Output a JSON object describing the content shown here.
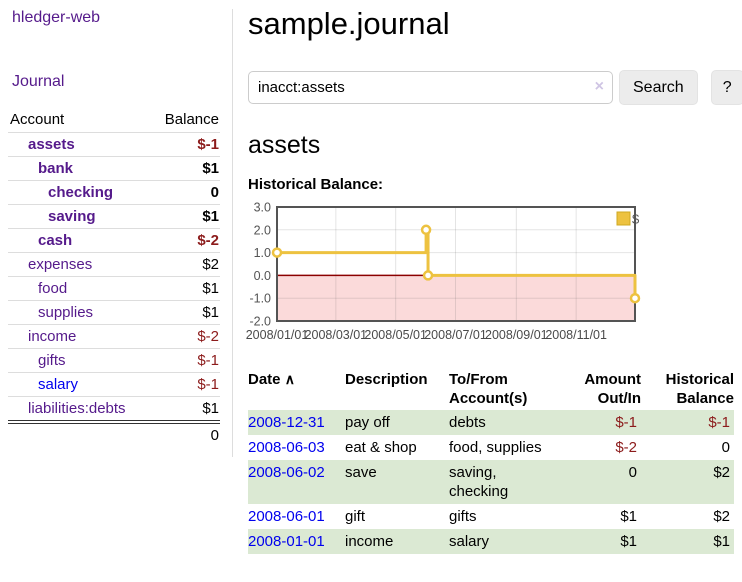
{
  "palette": {
    "visited_link_purple": "#551a8b",
    "unvisited_link_blue": "#0000ee",
    "negative_red": "#8c1b1b",
    "row_stripe_green": "#dbe9d3",
    "series_gold": "#edc240",
    "chart_negative_pink": "#fbdada",
    "zero_line_red": "#8b0000",
    "chart_border_gray": "#545454"
  },
  "icons": {
    "sort_asc": "∧",
    "clear": "×"
  },
  "sidebar": {
    "app_title": "hledger-web",
    "nav_journal": "Journal",
    "accounts_table": {
      "headers": [
        "Account",
        "Balance"
      ],
      "rows": [
        {
          "name": "assets",
          "indent": 1,
          "bold": true,
          "balance": "$-1",
          "negative": true,
          "link": "visited"
        },
        {
          "name": "bank",
          "indent": 2,
          "bold": true,
          "balance": "$1",
          "negative": false,
          "link": "visited"
        },
        {
          "name": "checking",
          "indent": 3,
          "bold": true,
          "balance": "0",
          "negative": false,
          "link": "visited"
        },
        {
          "name": "saving",
          "indent": 3,
          "bold": true,
          "balance": "$1",
          "negative": false,
          "link": "visited"
        },
        {
          "name": "cash",
          "indent": 2,
          "bold": true,
          "balance": "$-2",
          "negative": true,
          "link": "visited"
        },
        {
          "name": "expenses",
          "indent": 1,
          "bold": false,
          "balance": "$2",
          "negative": false,
          "link": "visited"
        },
        {
          "name": "food",
          "indent": 2,
          "bold": false,
          "balance": "$1",
          "negative": false,
          "link": "visited"
        },
        {
          "name": "supplies",
          "indent": 2,
          "bold": false,
          "balance": "$1",
          "negative": false,
          "link": "visited"
        },
        {
          "name": "income",
          "indent": 1,
          "bold": false,
          "balance": "$-2",
          "negative": true,
          "link": "visited"
        },
        {
          "name": "gifts",
          "indent": 2,
          "bold": false,
          "balance": "$-1",
          "negative": true,
          "link": "visited"
        },
        {
          "name": "salary",
          "indent": 2,
          "bold": false,
          "balance": "$-1",
          "negative": true,
          "link": "unvisited"
        },
        {
          "name": "liabilities:debts",
          "indent": 1,
          "bold": false,
          "balance": "$1",
          "negative": false,
          "link": "visited"
        }
      ],
      "total": "0"
    }
  },
  "header": {
    "title": "sample.journal"
  },
  "search": {
    "query": "inacct:assets",
    "search_label": "Search",
    "help_label": "?"
  },
  "account_page": {
    "heading": "assets",
    "chart_title": "Historical Balance:"
  },
  "chart_data": {
    "type": "line",
    "step": true,
    "title": "Historical Balance:",
    "x_start": "2008-01-01",
    "x_end": "2008-12-31",
    "x_ticks": [
      {
        "date": "2008-01-01",
        "label": "2008/01/01"
      },
      {
        "date": "2008-03-01",
        "label": "2008/03/01"
      },
      {
        "date": "2008-05-01",
        "label": "2008/05/01"
      },
      {
        "date": "2008-07-01",
        "label": "2008/07/01"
      },
      {
        "date": "2008-09-01",
        "label": "2008/09/01"
      },
      {
        "date": "2008-11-01",
        "label": "2008/11/01"
      }
    ],
    "y_ticks": [
      "3.0",
      "2.0",
      "1.0",
      "0.0",
      "-1.0",
      "-2.0"
    ],
    "ylim": [
      -2,
      3
    ],
    "grid": true,
    "legend_position": "top-right",
    "series": [
      {
        "name": "$",
        "color": "#edc240",
        "points": [
          {
            "date": "2008-01-01",
            "value": 1
          },
          {
            "date": "2008-06-01",
            "value": 2
          },
          {
            "date": "2008-06-03",
            "value": 0
          },
          {
            "date": "2008-12-31",
            "value": -1
          }
        ]
      }
    ],
    "negative_fill": "#fbdada",
    "zero_line_color": "#8b0000",
    "border_color": "#545454"
  },
  "register": {
    "headers": [
      "Date",
      "Description",
      "To/From Account(s)",
      "Amount Out/In",
      "Historical Balance"
    ],
    "sort": {
      "column": "Date",
      "direction": "ascending"
    },
    "rows": [
      {
        "date": "2008-12-31",
        "description": "pay off",
        "accounts": "debts",
        "amount": "$-1",
        "amount_negative": true,
        "balance": "$-1",
        "balance_negative": true
      },
      {
        "date": "2008-06-03",
        "description": "eat & shop",
        "accounts": "food, supplies",
        "amount": "$-2",
        "amount_negative": true,
        "balance": "0",
        "balance_negative": false
      },
      {
        "date": "2008-06-02",
        "description": "save",
        "accounts": "saving, checking",
        "amount": "0",
        "amount_negative": false,
        "balance": "$2",
        "balance_negative": false
      },
      {
        "date": "2008-06-01",
        "description": "gift",
        "accounts": "gifts",
        "amount": "$1",
        "amount_negative": false,
        "balance": "$2",
        "balance_negative": false
      },
      {
        "date": "2008-01-01",
        "description": "income",
        "accounts": "salary",
        "amount": "$1",
        "amount_negative": false,
        "balance": "$1",
        "balance_negative": false
      }
    ]
  }
}
